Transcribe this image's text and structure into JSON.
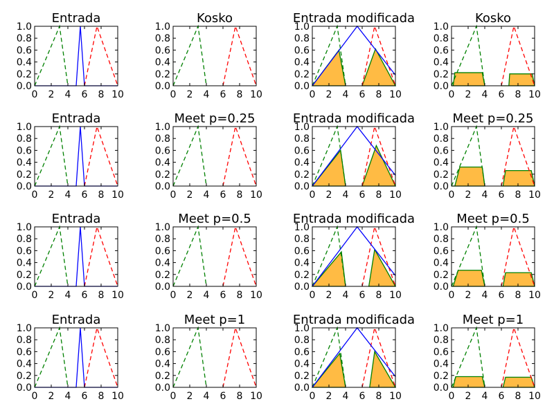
{
  "chart_data": {
    "type": "line",
    "rows": 4,
    "cols": 4,
    "xlim": [
      0,
      10
    ],
    "ylim": [
      0,
      1
    ],
    "xticks": [
      0,
      2,
      4,
      6,
      8,
      10
    ],
    "yticks": [
      0.0,
      0.2,
      0.4,
      0.6,
      0.8,
      1.0
    ],
    "xtick_labels": [
      "0",
      "2",
      "4",
      "6",
      "8",
      "10"
    ],
    "ytick_labels": [
      "0.0",
      "0.2",
      "0.4",
      "0.6",
      "0.8",
      "1.0"
    ],
    "grid": false,
    "colors": {
      "green": "#008000",
      "red": "#ff0000",
      "blue": "#0000ff",
      "fill": "#ffbb44"
    },
    "sets": {
      "green_triangle": {
        "x": [
          0,
          3,
          4
        ],
        "y": [
          0,
          1,
          0
        ],
        "style": "dashed",
        "color": "green"
      },
      "red_triangle": {
        "x": [
          6,
          7.5,
          10
        ],
        "y": [
          0,
          1,
          0
        ],
        "style": "dashed",
        "color": "red"
      }
    },
    "input_spike": {
      "x": [
        0,
        5,
        5.5,
        6,
        10
      ],
      "y": [
        0,
        0,
        1,
        0,
        0
      ],
      "color": "blue"
    },
    "wide_input": {
      "x": [
        0,
        5.4,
        10
      ],
      "y": [
        0,
        1,
        0.18
      ],
      "color": "blue"
    },
    "rows_data": [
      {
        "titles": [
          "Entrada",
          "Kosko",
          "Entrada modificada",
          "Kosko"
        ],
        "modified_fill": [
          {
            "x": [
              0,
              3.2,
              4
            ],
            "y": [
              0,
              0.6,
              0
            ]
          },
          {
            "x": [
              6,
              7.6,
              10
            ],
            "y": [
              0,
              0.62,
              0
            ]
          }
        ],
        "output_fill": [
          {
            "x": [
              0,
              0.2,
              0.4,
              3.7,
              4
            ],
            "y": [
              0,
              0,
              0.22,
              0.22,
              0
            ]
          },
          {
            "x": [
              6,
              6.9,
              7,
              9.7,
              10
            ],
            "y": [
              0,
              0,
              0.2,
              0.2,
              0
            ]
          }
        ]
      },
      {
        "titles": [
          "Entrada",
          "Meet p=0.25",
          "Entrada modificada",
          "Meet p=0.25"
        ],
        "modified_fill": [
          {
            "x": [
              0,
              3.4,
              4
            ],
            "y": [
              0,
              0.6,
              0
            ]
          },
          {
            "x": [
              6,
              7.7,
              10
            ],
            "y": [
              0,
              0.68,
              0
            ]
          }
        ],
        "output_fill": [
          {
            "x": [
              0,
              0.4,
              1,
              3.7,
              4
            ],
            "y": [
              0,
              0,
              0.32,
              0.32,
              0
            ]
          },
          {
            "x": [
              6,
              6.2,
              6.5,
              9.6,
              10
            ],
            "y": [
              0,
              0,
              0.26,
              0.26,
              0
            ]
          }
        ]
      },
      {
        "titles": [
          "Entrada",
          "Meet p=0.5",
          "Entrada modificada",
          "Meet p=0.5"
        ],
        "modified_fill": [
          {
            "x": [
              0,
              3.5,
              4
            ],
            "y": [
              0,
              0.58,
              0
            ]
          },
          {
            "x": [
              6.8,
              7.5,
              10
            ],
            "y": [
              0,
              0.62,
              0
            ]
          }
        ],
        "output_fill": [
          {
            "x": [
              0,
              0.2,
              0.8,
              3.6,
              4
            ],
            "y": [
              0,
              0,
              0.27,
              0.27,
              0
            ]
          },
          {
            "x": [
              6,
              6.2,
              6.5,
              9.6,
              10
            ],
            "y": [
              0,
              0,
              0.23,
              0.23,
              0
            ]
          }
        ]
      },
      {
        "titles": [
          "Entrada",
          "Meet p=1",
          "Entrada modificada",
          "Meet p=1"
        ],
        "modified_fill": [
          {
            "x": [
              0,
              3.3,
              4
            ],
            "y": [
              0,
              0.57,
              0
            ]
          },
          {
            "x": [
              6.9,
              7.5,
              10
            ],
            "y": [
              0,
              0.6,
              0
            ]
          }
        ],
        "output_fill": [
          {
            "x": [
              0,
              0.2,
              0.5,
              3.7,
              4
            ],
            "y": [
              0,
              0,
              0.18,
              0.18,
              0
            ]
          },
          {
            "x": [
              6,
              6.2,
              6.5,
              9.6,
              10
            ],
            "y": [
              0,
              0,
              0.17,
              0.17,
              0
            ]
          }
        ]
      }
    ]
  }
}
